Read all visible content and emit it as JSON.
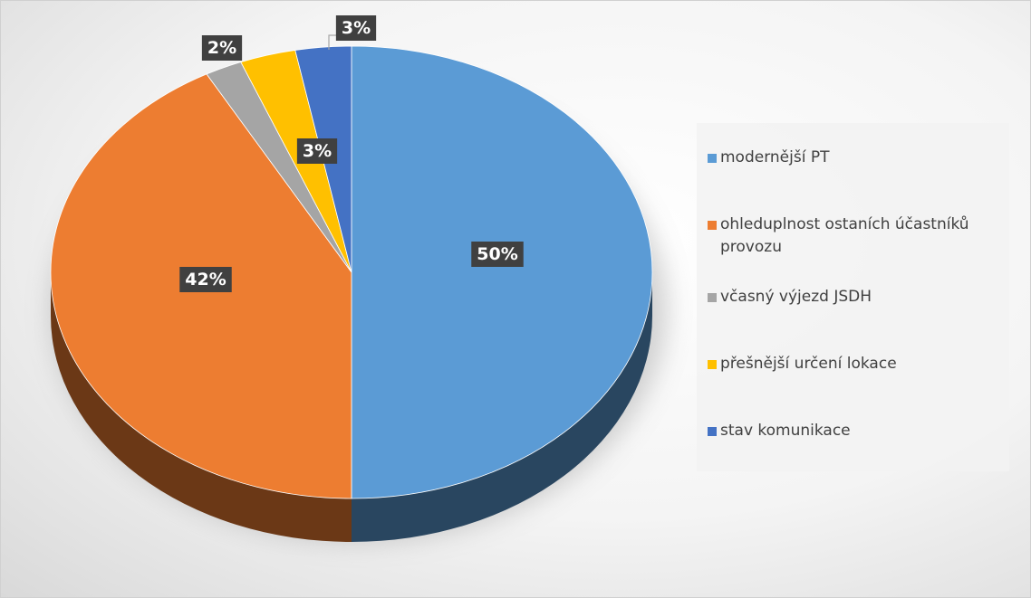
{
  "chart_data": {
    "type": "pie",
    "categories": [
      "modernější PT",
      "ohleduplnost ostaních účastníků provozu",
      "včasný výjezd JSDH",
      "přešnější určení lokace",
      "stav komunikace"
    ],
    "values": [
      50,
      42,
      2,
      3,
      3
    ],
    "value_labels": [
      "50%",
      "42%",
      "2%",
      "3%",
      "3%"
    ],
    "colors": [
      "#5b9bd5",
      "#ed7d31",
      "#a5a5a5",
      "#ffc000",
      "#4472c4"
    ],
    "legend": "right"
  }
}
